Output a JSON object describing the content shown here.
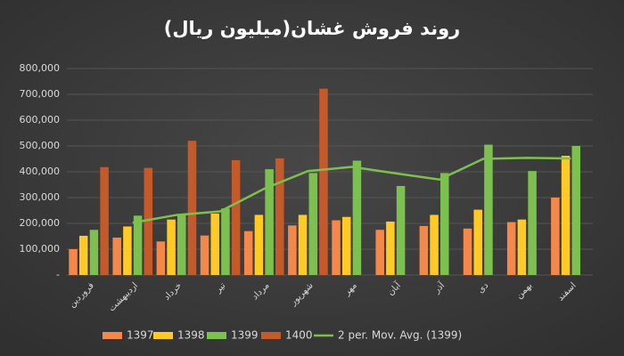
{
  "chart_data": {
    "type": "bar",
    "title": "روند فروش غشان(میلیون ریال)",
    "categories": [
      "فروردین",
      "اردیبهشت",
      "خرداد",
      "تیر",
      "مرداد",
      "شهریور",
      "مهر",
      "آبان",
      "آذر",
      "دی",
      "بهمن",
      "اسفند"
    ],
    "series": [
      {
        "name": "1397",
        "color": "#f4884a",
        "values": [
          100000,
          145000,
          130000,
          153000,
          170000,
          192000,
          212000,
          175000,
          190000,
          180000,
          205000,
          300000
        ]
      },
      {
        "name": "1398",
        "color": "#ffc926",
        "values": [
          152000,
          188000,
          215000,
          238000,
          233000,
          233000,
          225000,
          207000,
          233000,
          253000,
          215000,
          462000
        ]
      },
      {
        "name": "1399",
        "color": "#7cc050",
        "values": [
          175000,
          230000,
          235000,
          258000,
          410000,
          395000,
          443000,
          345000,
          395000,
          505000,
          403000,
          500000
        ]
      },
      {
        "name": "1400",
        "color": "#c4592a",
        "values": [
          418000,
          415000,
          520000,
          445000,
          452000,
          722000,
          null,
          null,
          null,
          null,
          null,
          null
        ]
      },
      {
        "name": "2 per. Mov. Avg. (1399)",
        "color": "#7ec04f",
        "type": "line",
        "values": [
          null,
          202500,
          232500,
          246500,
          334000,
          402500,
          419000,
          394000,
          370000,
          450000,
          454000,
          451500
        ]
      }
    ],
    "ylim": [
      0,
      800000
    ],
    "yticks": [
      {
        "value": 0,
        "label": "-"
      },
      {
        "value": 100000,
        "label": "100,000"
      },
      {
        "value": 200000,
        "label": "200,000"
      },
      {
        "value": 300000,
        "label": "300,000"
      },
      {
        "value": 400000,
        "label": "400,000"
      },
      {
        "value": 500000,
        "label": "500,000"
      },
      {
        "value": 600000,
        "label": "600,000"
      },
      {
        "value": 700000,
        "label": "700,000"
      },
      {
        "value": 800000,
        "label": "800,000"
      }
    ],
    "grid": true,
    "legend": "bottom"
  }
}
